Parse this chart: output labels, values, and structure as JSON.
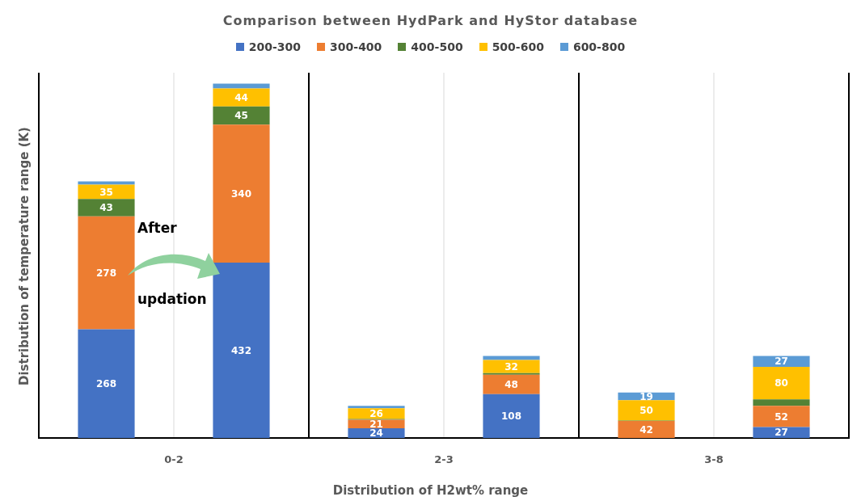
{
  "chart_data": {
    "type": "bar",
    "stacked": true,
    "title": "Comparison between HydPark and HyStor database",
    "xlabel": "Distribution of H2wt% range",
    "ylabel": "Distribution of temperature range (K)",
    "categories": [
      "0-2",
      null,
      "2-3",
      null,
      "3-8",
      null
    ],
    "series": [
      {
        "name": "200-300",
        "color": "#4472c4",
        "values": [
          268,
          432,
          24,
          108,
          0,
          27
        ],
        "value_labels": [
          "268",
          "432",
          "24",
          "108",
          null,
          "27"
        ]
      },
      {
        "name": "300-400",
        "color": "#ed7d31",
        "values": [
          278,
          340,
          21,
          48,
          42,
          52
        ],
        "value_labels": [
          "278",
          "340",
          "21",
          "48",
          "42",
          "52"
        ]
      },
      {
        "name": "400-500",
        "color": "#548235",
        "values": [
          43,
          45,
          2,
          4,
          1,
          16
        ],
        "value_labels": [
          "43",
          "45",
          null,
          null,
          null,
          null
        ]
      },
      {
        "name": "500-600",
        "color": "#ffc000",
        "values": [
          35,
          44,
          26,
          32,
          50,
          80
        ],
        "value_labels": [
          "35",
          "44",
          "26",
          "32",
          "50",
          "80"
        ]
      },
      {
        "name": "600-800",
        "color": "#5b9bd5",
        "values": [
          8,
          12,
          6,
          10,
          19,
          27
        ],
        "value_labels": [
          null,
          null,
          null,
          null,
          "19",
          "27"
        ]
      }
    ],
    "ylim": [
      0,
      900
    ],
    "tick_labels": "x",
    "legend": "top",
    "grid": "x",
    "annotations": [
      "After",
      "updation"
    ]
  }
}
